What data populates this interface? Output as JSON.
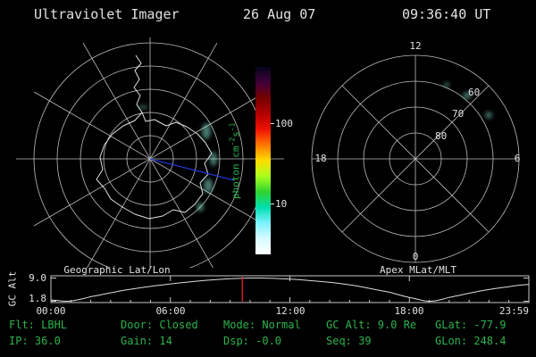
{
  "header": {
    "title": "Ultraviolet Imager",
    "date": "26 Aug 07",
    "time": "09:36:40 UT"
  },
  "status": {
    "rows": [
      [
        "Flt: LBHL",
        "Door: Closed",
        "Mode: Normal",
        "GC Alt: 9.0 Re",
        "GLat: -77.9"
      ],
      [
        "IP: 36.0",
        "Gain: 14",
        "Dsp: -0.0",
        "Seq: 39",
        "GLon: 248.4"
      ]
    ]
  },
  "colors": {
    "background": "#000000",
    "text_primary": "#e2e2e2",
    "text_status_green": "#2db34d",
    "grid": "#c8c8c8",
    "cursor_red": "#ff2222",
    "track_blue": "#2233cc",
    "emission_cyan": "#8ef0dc"
  },
  "chart_data": [
    {
      "type": "map",
      "subtype": "south-polar-azimuthal",
      "title": "Geographic Lat/Lon",
      "grid": {
        "lat_circle_count": 5,
        "lon_spoke_step_deg": 30
      },
      "overlays": [
        "Antarctica coastline",
        "blue meridian track line from pole",
        "faint cyan auroral emission patches"
      ]
    },
    {
      "type": "heatmap",
      "role": "colorbar",
      "label": "photon cm-2 s-1",
      "label_parts": {
        "a": "photon cm",
        "b": "-2",
        "c": "s",
        "d": "-1"
      },
      "scale": "log",
      "tick_values": [
        10,
        100
      ],
      "colors_top_to_bottom": [
        "#05051a",
        "#40003a",
        "#750000",
        "#b30000",
        "#ee1100",
        "#ff7700",
        "#ffdd00",
        "#a8ff1e",
        "#2fd32f",
        "#00dfae",
        "#7df2ff",
        "#d8fbff",
        "#ffffff"
      ]
    },
    {
      "type": "map",
      "subtype": "polar-mlat-mlt",
      "title": "Apex MLat/MLT",
      "mlt_labels": [
        "12",
        "18",
        "6",
        "0"
      ],
      "mlat_ring_labels": [
        "60",
        "70",
        "80"
      ],
      "grid": {
        "ring_count": 4,
        "spoke_step_deg": 45
      }
    },
    {
      "type": "line",
      "title": "GC Alt",
      "ylabel": "GC Alt",
      "ylim": [
        1.8,
        9.0
      ],
      "ytick_labels": [
        "9.0",
        "1.8"
      ],
      "x_hours": [
        0,
        0.9,
        2,
        3.5,
        5,
        6.5,
        8,
        10,
        11.5,
        13,
        15,
        17,
        18.3,
        19.1,
        20,
        21.5,
        23,
        24
      ],
      "values": [
        2.2,
        1.8,
        3.2,
        5.0,
        6.4,
        7.5,
        8.4,
        9.0,
        8.8,
        8.2,
        6.9,
        4.6,
        2.6,
        1.8,
        3.0,
        4.9,
        6.3,
        7.0
      ],
      "cursor": {
        "time_ut": "09:36:40",
        "hours": 9.61,
        "color": "#ff2222"
      },
      "xtick_labels": [
        "00:00",
        "06:00",
        "12:00",
        "18:00",
        "23:59"
      ],
      "xlim_hours": [
        0,
        24
      ]
    }
  ]
}
